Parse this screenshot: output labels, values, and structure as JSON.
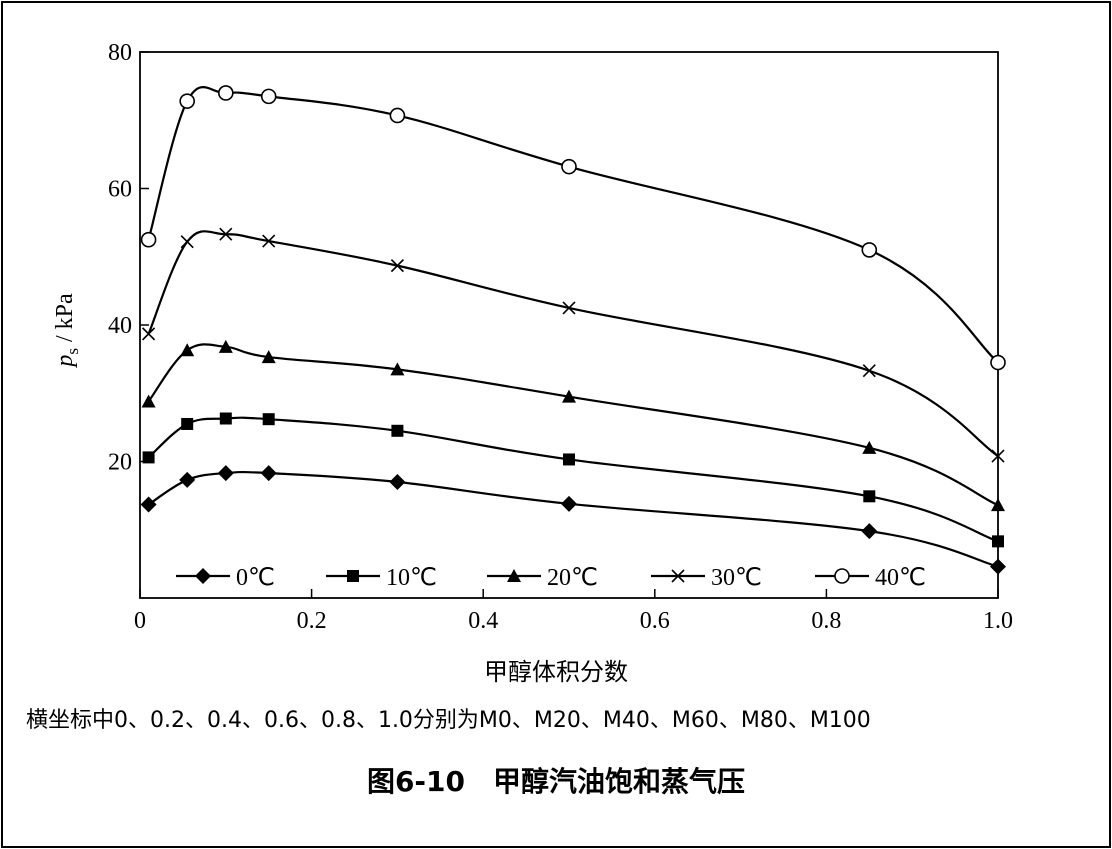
{
  "chart_data": {
    "type": "line",
    "xlabel": "甲醇体积分数",
    "ylabel_main": "p",
    "ylabel_sub": "s",
    "ylabel_unit": "/ kPa",
    "xlim": [
      0,
      1.0
    ],
    "ylim": [
      0,
      80
    ],
    "x_ticks": [
      "0",
      "0.2",
      "0.4",
      "0.6",
      "0.8",
      "1.0"
    ],
    "x_tick_values": [
      0,
      0.2,
      0.4,
      0.6,
      0.8,
      1.0
    ],
    "y_ticks": [
      "20",
      "40",
      "60",
      "80"
    ],
    "y_tick_values": [
      20,
      40,
      60,
      80
    ],
    "grid": false,
    "legend_position": "bottom-inside",
    "series": [
      {
        "name": "0℃",
        "marker": "diamond",
        "x": [
          0.01,
          0.055,
          0.1,
          0.15,
          0.3,
          0.5,
          0.85,
          1.0
        ],
        "y": [
          13.7,
          17.3,
          18.3,
          18.3,
          17.0,
          13.8,
          9.8,
          4.6
        ]
      },
      {
        "name": "10℃",
        "marker": "square",
        "x": [
          0.01,
          0.055,
          0.1,
          0.15,
          0.3,
          0.5,
          0.85,
          1.0
        ],
        "y": [
          20.6,
          25.5,
          26.3,
          26.2,
          24.5,
          20.3,
          14.9,
          8.3
        ]
      },
      {
        "name": "20℃",
        "marker": "triangle",
        "x": [
          0.01,
          0.055,
          0.1,
          0.15,
          0.3,
          0.5,
          0.85,
          1.0
        ],
        "y": [
          28.8,
          36.3,
          36.8,
          35.3,
          33.5,
          29.5,
          22.0,
          13.6
        ]
      },
      {
        "name": "30℃",
        "marker": "x",
        "x": [
          0.01,
          0.055,
          0.1,
          0.15,
          0.3,
          0.5,
          0.85,
          1.0
        ],
        "y": [
          38.7,
          52.2,
          53.3,
          52.3,
          48.7,
          42.5,
          33.3,
          20.8
        ]
      },
      {
        "name": "40℃",
        "marker": "circle",
        "x": [
          0.01,
          0.055,
          0.1,
          0.15,
          0.3,
          0.5,
          0.85,
          1.0
        ],
        "y": [
          52.5,
          72.8,
          74.0,
          73.5,
          70.7,
          63.2,
          51.0,
          34.5
        ]
      }
    ]
  },
  "note": "横坐标中0、0.2、0.4、0.6、0.8、1.0分别为M0、M20、M40、M60、M80、M100",
  "caption": "图6-10　甲醇汽油饱和蒸气压"
}
